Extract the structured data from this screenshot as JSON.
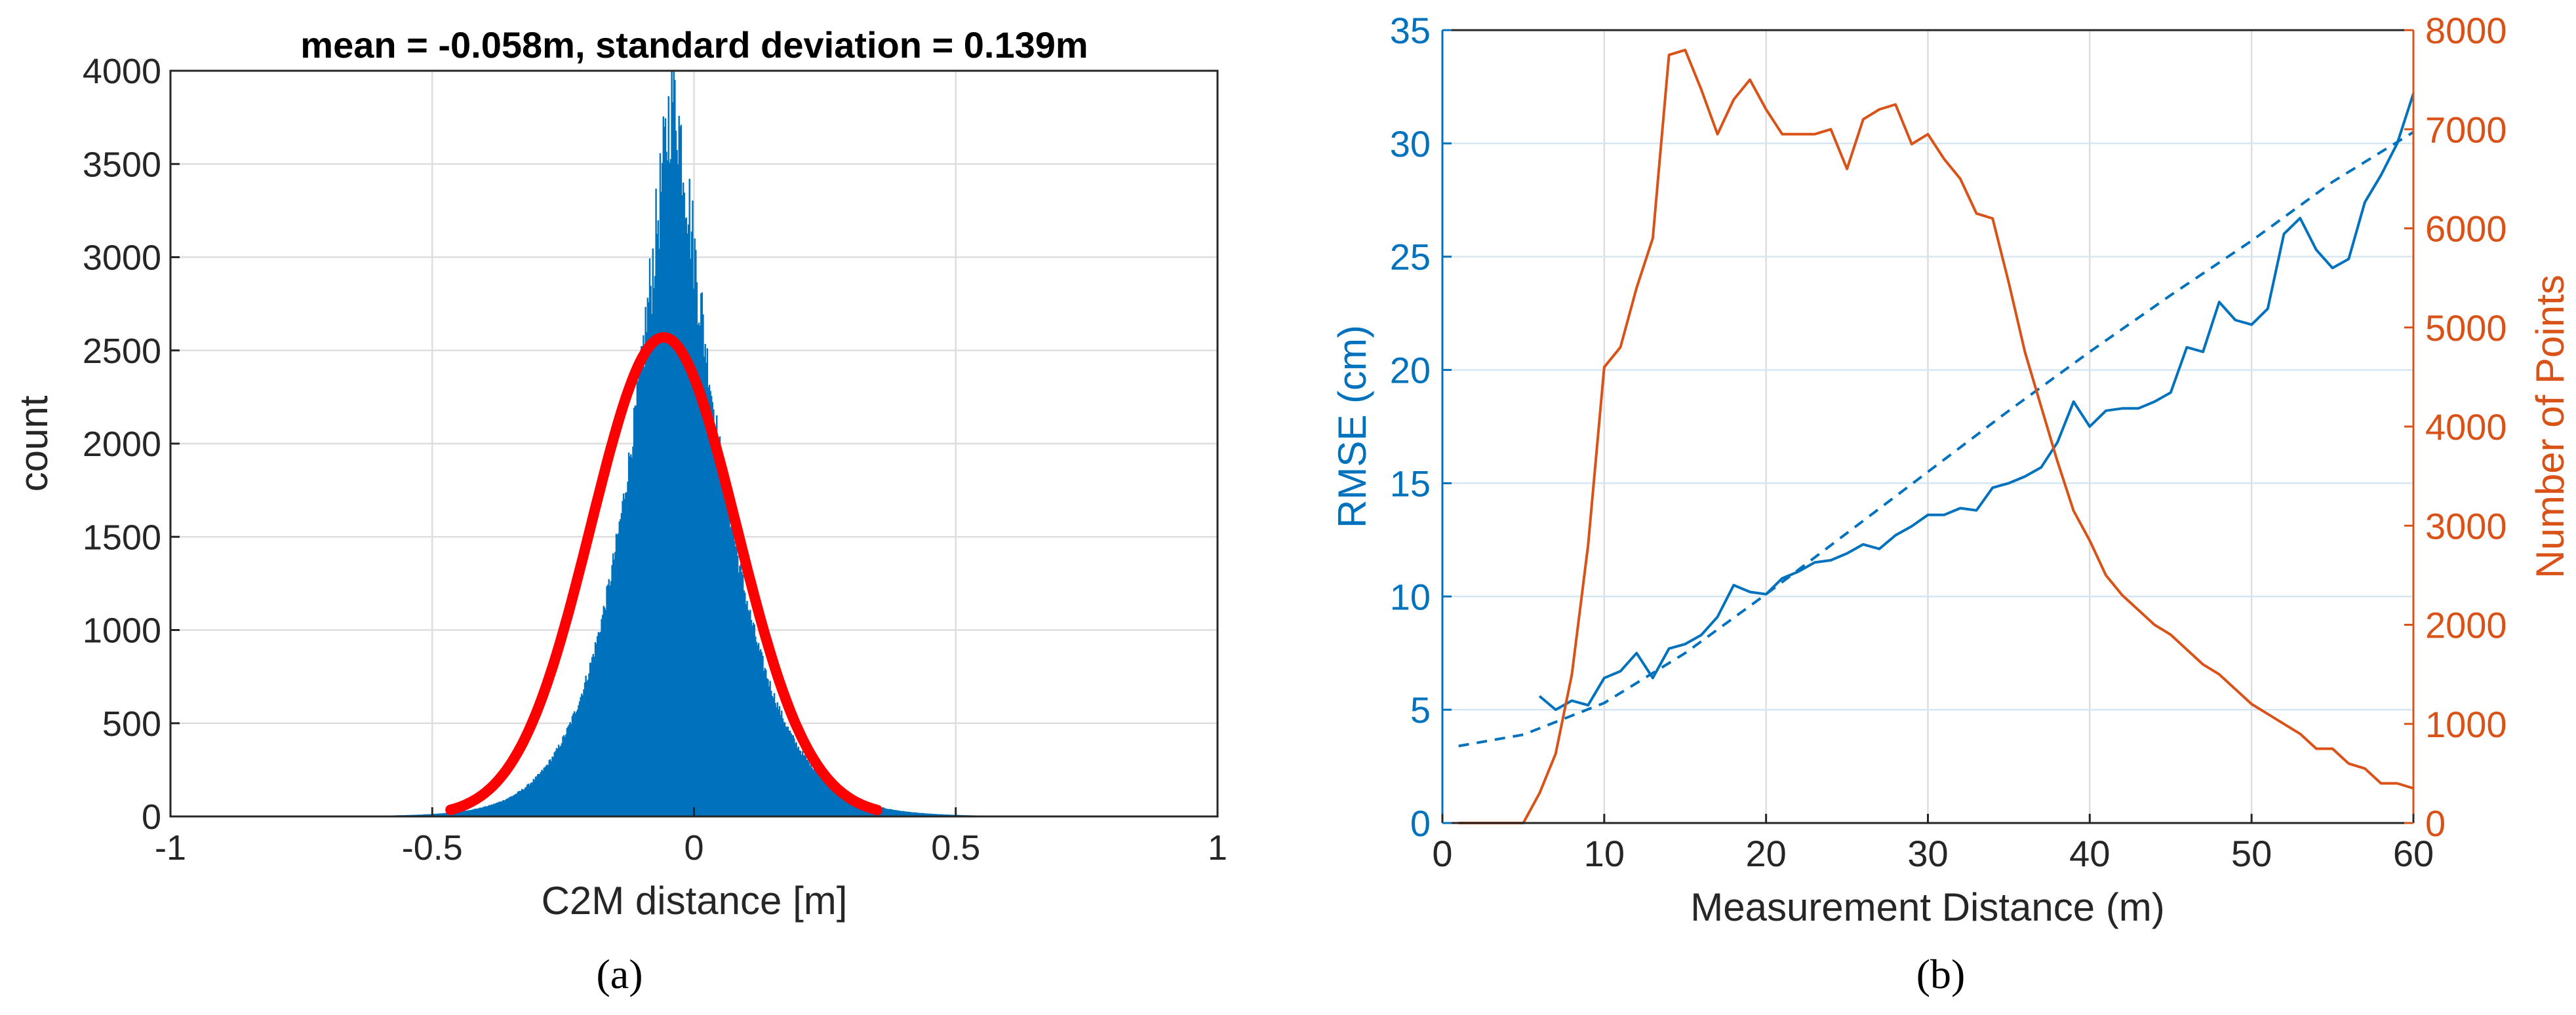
{
  "chart_data": [
    {
      "id": "a",
      "type": "bar",
      "title": "mean = -0.058m, standard deviation = 0.139m",
      "xlabel": "C2M distance [m]",
      "ylabel": "count",
      "caption": "(a)",
      "xlim": [
        -1,
        1
      ],
      "ylim": [
        0,
        4000
      ],
      "xticks": [
        -1,
        -0.5,
        0,
        0.5,
        1
      ],
      "xtick_labels": [
        "-1",
        "-0.5",
        "0",
        "0.5",
        "1"
      ],
      "yticks": [
        0,
        500,
        1000,
        1500,
        2000,
        2500,
        3000,
        3500,
        4000
      ],
      "ytick_labels": [
        "0",
        "500",
        "1000",
        "1500",
        "2000",
        "2500",
        "3000",
        "3500",
        "4000"
      ],
      "grid": true,
      "series": [
        {
          "name": "Histogram",
          "kind": "histogram",
          "color": "#0072BD",
          "bin_width": 0.002,
          "peak_x": -0.04,
          "peak_count": 4000,
          "left_scale": 0.11,
          "right_scale": 0.12,
          "tail_fraction": 0.004,
          "tail_scale": 0.3,
          "x_min": -0.75,
          "x_max": 0.8
        },
        {
          "name": "Normal fit",
          "kind": "line",
          "color": "#FF0000",
          "mean": -0.058,
          "std": 0.139,
          "amplitude": 2570,
          "x_range": [
            -0.465,
            0.35
          ]
        }
      ]
    },
    {
      "id": "b",
      "type": "line",
      "caption": "(b)",
      "xlabel": "Measurement Distance (m)",
      "ylabel": "RMSE (cm)",
      "y2label": "Number of Points",
      "xlim": [
        0,
        60
      ],
      "ylim": [
        0,
        35
      ],
      "y2lim": [
        0,
        8000
      ],
      "xticks": [
        0,
        10,
        20,
        30,
        40,
        50,
        60
      ],
      "xtick_labels": [
        "0",
        "10",
        "20",
        "30",
        "40",
        "50",
        "60"
      ],
      "yticks": [
        0,
        5,
        10,
        15,
        20,
        25,
        30,
        35
      ],
      "ytick_labels": [
        "0",
        "5",
        "10",
        "15",
        "20",
        "25",
        "30",
        "35"
      ],
      "y2ticks": [
        0,
        1000,
        2000,
        3000,
        4000,
        5000,
        6000,
        7000,
        8000
      ],
      "y2tick_labels": [
        "0",
        "1000",
        "2000",
        "3000",
        "4000",
        "5000",
        "6000",
        "7000",
        "8000"
      ],
      "grid": true,
      "axis_colors": {
        "left": "#0072BD",
        "right": "#D95319"
      },
      "series": [
        {
          "name": "RMSE",
          "axis": "left",
          "color": "#0072BD",
          "style": "solid",
          "x": [
            6,
            7,
            8,
            9,
            10,
            11,
            12,
            13,
            14,
            15,
            16,
            17,
            18,
            19,
            20,
            21,
            22,
            23,
            24,
            25,
            26,
            27,
            28,
            29,
            30,
            31,
            32,
            33,
            34,
            35,
            36,
            37,
            38,
            39,
            40,
            41,
            42,
            43,
            44,
            45,
            46,
            47,
            48,
            49,
            50,
            51,
            52,
            53,
            54,
            55,
            56,
            57,
            58,
            59,
            60
          ],
          "y": [
            5.6,
            5.0,
            5.4,
            5.2,
            6.4,
            6.7,
            7.5,
            6.4,
            7.7,
            7.9,
            8.3,
            9.1,
            10.5,
            10.2,
            10.1,
            10.8,
            11.1,
            11.5,
            11.6,
            11.9,
            12.3,
            12.1,
            12.7,
            13.1,
            13.6,
            13.6,
            13.9,
            13.8,
            14.8,
            15.0,
            15.3,
            15.7,
            16.8,
            18.6,
            17.5,
            18.2,
            18.3,
            18.3,
            18.6,
            19.0,
            21.0,
            20.8,
            23.0,
            22.2,
            22.0,
            22.7,
            26.0,
            26.7,
            25.3,
            24.5,
            24.9,
            27.4,
            28.6,
            30.0,
            32.2
          ]
        },
        {
          "name": "RMSE fit",
          "axis": "left",
          "color": "#0072BD",
          "style": "dashed",
          "x": [
            1,
            5,
            10,
            15,
            20,
            25,
            30,
            35,
            40,
            45,
            50,
            55,
            60
          ],
          "y": [
            3.4,
            3.9,
            5.3,
            7.5,
            10.1,
            12.8,
            15.5,
            18.2,
            20.8,
            23.3,
            25.7,
            28.3,
            30.5
          ]
        },
        {
          "name": "Number of Points",
          "axis": "right",
          "color": "#D95319",
          "style": "solid",
          "x": [
            1,
            2,
            3,
            4,
            5,
            6,
            7,
            8,
            9,
            10,
            11,
            12,
            13,
            14,
            15,
            16,
            17,
            18,
            19,
            20,
            21,
            22,
            23,
            24,
            25,
            26,
            27,
            28,
            29,
            30,
            31,
            32,
            33,
            34,
            35,
            36,
            37,
            38,
            39,
            40,
            41,
            42,
            43,
            44,
            45,
            46,
            47,
            48,
            49,
            50,
            51,
            52,
            53,
            54,
            55,
            56,
            57,
            58,
            59,
            60
          ],
          "y": [
            0,
            0,
            0,
            0,
            0,
            300,
            700,
            1500,
            2800,
            4600,
            4800,
            5400,
            5900,
            7750,
            7800,
            7400,
            6950,
            7300,
            7500,
            7200,
            6950,
            6950,
            6950,
            7000,
            6600,
            7100,
            7200,
            7250,
            6850,
            6950,
            6700,
            6500,
            6150,
            6100,
            5450,
            4750,
            4200,
            3650,
            3150,
            2850,
            2500,
            2300,
            2150,
            2000,
            1900,
            1750,
            1600,
            1500,
            1350,
            1200,
            1100,
            1000,
            900,
            750,
            750,
            600,
            550,
            400,
            400,
            350
          ]
        }
      ]
    }
  ]
}
